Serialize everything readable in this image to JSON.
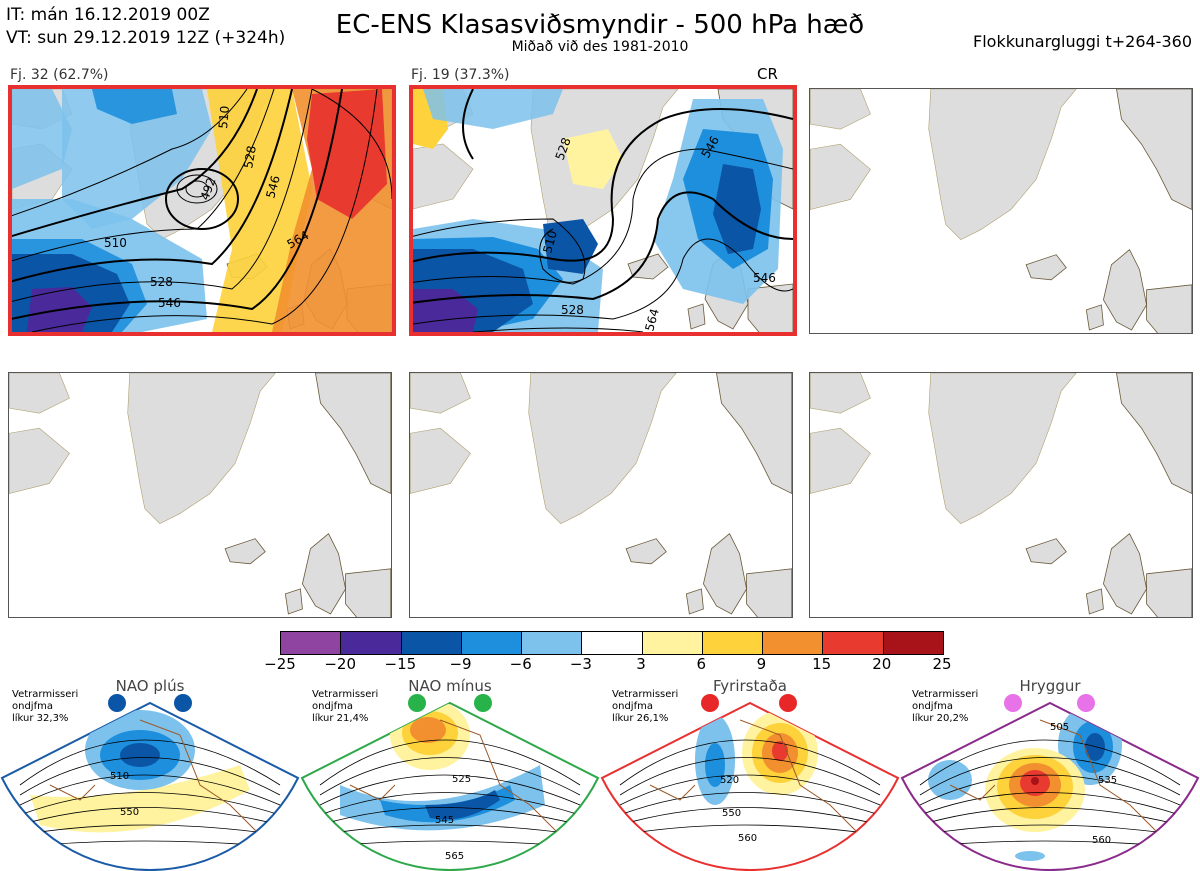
{
  "header": {
    "it_line": "IT: mán 16.12.2019 00Z",
    "vt_line": "VT: sun 29.12.2019 12Z  (+324h)",
    "title": "EC-ENS Klasasviðsmyndir - 500 hPa hæð",
    "subtitle": "Miðað við des 1981-2010",
    "window": "Flokkunargluggi t+264-360"
  },
  "clusters": [
    {
      "label": "Fj. 32 (62.7%)",
      "selected": true,
      "contour_labels": [
        "492",
        "510",
        "528",
        "546",
        "564",
        "510",
        "528",
        "546"
      ]
    },
    {
      "label": "Fj. 19 (37.3%)",
      "selected": true,
      "regime_code": "CR",
      "contour_labels": [
        "510",
        "528",
        "528",
        "546",
        "564",
        "546"
      ]
    }
  ],
  "colorbar": {
    "ticks": [
      "−25",
      "−20",
      "−15",
      "−9",
      "−6",
      "−3",
      "3",
      "6",
      "9",
      "15",
      "20",
      "25"
    ],
    "colors": [
      "#8e44a0",
      "#4a2a9a",
      "#0b55a6",
      "#1e8fdc",
      "#7cc2ec",
      "#ffffff",
      "#fff3a0",
      "#fdd23a",
      "#f2902f",
      "#e83a2e",
      "#a8131a"
    ]
  },
  "regimes": [
    {
      "name": "NAO plús",
      "info": [
        "Vetrarmisseri",
        "ondjfma",
        "líkur 32,3%"
      ],
      "color": "#1a5aa6",
      "dot_color": "#0b55a6",
      "labels": [
        "510",
        "550"
      ]
    },
    {
      "name": "NAO mínus",
      "info": [
        "Vetrarmisseri",
        "ondjfma",
        "líkur 21,4%"
      ],
      "color": "#2ea84a",
      "dot_color": "#27b24a",
      "labels": [
        "525",
        "545",
        "565"
      ]
    },
    {
      "name": "Fyrirstaða",
      "info": [
        "Vetrarmisseri",
        "ondjfma",
        "líkur 26,1%"
      ],
      "color": "#e83030",
      "dot_color": "#e82828",
      "labels": [
        "520",
        "550",
        "560"
      ]
    },
    {
      "name": "Hryggur",
      "info": [
        "Vetrarmisseri",
        "ondjfma",
        "líkur 20,2%"
      ],
      "color": "#8a2a8a",
      "dot_color": "#e872e8",
      "labels": [
        "505",
        "535",
        "560"
      ]
    }
  ]
}
